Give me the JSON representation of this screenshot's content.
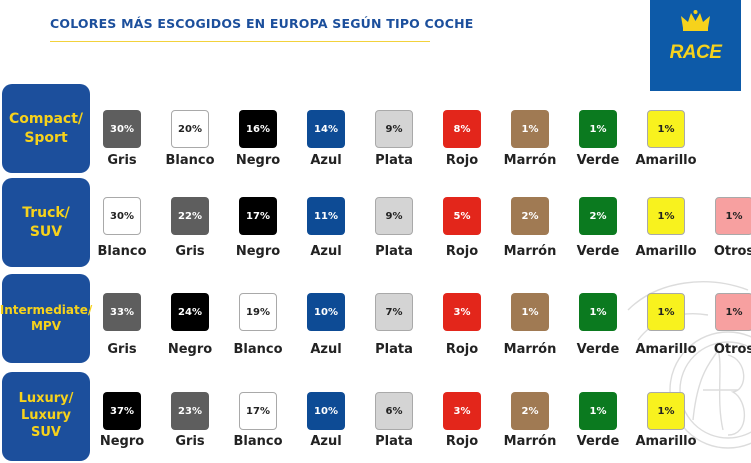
{
  "title": "COLORES MÁS ESCOGIDOS EN EUROPA SEGÚN TIPO COCHE",
  "logo": {
    "text": "RACE",
    "brand_color": "#0d5aa8",
    "accent_color": "#f6d21c"
  },
  "colors": {
    "Gris": "#5e5e5e",
    "Blanco": "#ffffff",
    "Negro": "#000000",
    "Azul": "#0d4b95",
    "Plata": "#d4d4d4",
    "Rojo": "#e3261b",
    "Marrón": "#a07a53",
    "Verde": "#0b7a1f",
    "Amarillo": "#f8f21e",
    "Otros": "#f7a0a0"
  },
  "chart_data": {
    "type": "table",
    "title": "COLORES MÁS ESCOGIDOS EN EUROPA SEGÚN TIPO COCHE",
    "unit": "%",
    "rows": [
      {
        "category": [
          "Compact/",
          "Sport"
        ],
        "items": [
          {
            "color": "Gris",
            "value": 30
          },
          {
            "color": "Blanco",
            "value": 20
          },
          {
            "color": "Negro",
            "value": 16
          },
          {
            "color": "Azul",
            "value": 14
          },
          {
            "color": "Plata",
            "value": 9
          },
          {
            "color": "Rojo",
            "value": 8
          },
          {
            "color": "Marrón",
            "value": 1
          },
          {
            "color": "Verde",
            "value": 1
          },
          {
            "color": "Amarillo",
            "value": 1
          }
        ]
      },
      {
        "category": [
          "Truck/",
          "SUV"
        ],
        "items": [
          {
            "color": "Blanco",
            "value": 30
          },
          {
            "color": "Gris",
            "value": 22
          },
          {
            "color": "Negro",
            "value": 17
          },
          {
            "color": "Azul",
            "value": 11
          },
          {
            "color": "Plata",
            "value": 9
          },
          {
            "color": "Rojo",
            "value": 5
          },
          {
            "color": "Marrón",
            "value": 2
          },
          {
            "color": "Verde",
            "value": 2
          },
          {
            "color": "Amarillo",
            "value": 1
          },
          {
            "color": "Otros",
            "value": 1
          }
        ]
      },
      {
        "category": [
          "Intermediate/",
          "MPV"
        ],
        "items": [
          {
            "color": "Gris",
            "value": 33
          },
          {
            "color": "Negro",
            "value": 24
          },
          {
            "color": "Blanco",
            "value": 19
          },
          {
            "color": "Azul",
            "value": 10
          },
          {
            "color": "Plata",
            "value": 7
          },
          {
            "color": "Rojo",
            "value": 3
          },
          {
            "color": "Marrón",
            "value": 1
          },
          {
            "color": "Verde",
            "value": 1
          },
          {
            "color": "Amarillo",
            "value": 1
          },
          {
            "color": "Otros",
            "value": 1
          }
        ]
      },
      {
        "category": [
          "Luxury/",
          "Luxury SUV"
        ],
        "items": [
          {
            "color": "Negro",
            "value": 37
          },
          {
            "color": "Gris",
            "value": 23
          },
          {
            "color": "Blanco",
            "value": 17
          },
          {
            "color": "Azul",
            "value": 10
          },
          {
            "color": "Plata",
            "value": 6
          },
          {
            "color": "Rojo",
            "value": 3
          },
          {
            "color": "Marrón",
            "value": 2
          },
          {
            "color": "Verde",
            "value": 1
          },
          {
            "color": "Amarillo",
            "value": 1
          }
        ]
      }
    ]
  }
}
